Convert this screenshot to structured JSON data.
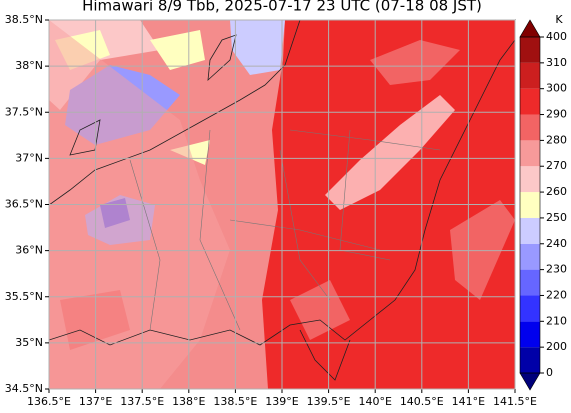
{
  "title": "Himawari 8/9 Tbb, 2025-07-17 23 UTC (07-18 08 JST)",
  "map": {
    "xlim": [
      136.5,
      141.5
    ],
    "ylim": [
      34.5,
      38.5
    ],
    "xticks": [
      {
        "value": 136.5,
        "label": "136.5°E"
      },
      {
        "value": 137,
        "label": "137°E"
      },
      {
        "value": 137.5,
        "label": "137.5°E"
      },
      {
        "value": 138,
        "label": "138°E"
      },
      {
        "value": 138.5,
        "label": "138.5°E"
      },
      {
        "value": 139,
        "label": "139°E"
      },
      {
        "value": 139.5,
        "label": "139.5°E"
      },
      {
        "value": 140,
        "label": "140°E"
      },
      {
        "value": 140.5,
        "label": "140.5°E"
      },
      {
        "value": 141,
        "label": "141°E"
      },
      {
        "value": 141.5,
        "label": "141.5°E"
      }
    ],
    "yticks": [
      {
        "value": 34.5,
        "label": "34.5°N"
      },
      {
        "value": 35,
        "label": "35°N"
      },
      {
        "value": 35.5,
        "label": "35.5°N"
      },
      {
        "value": 36,
        "label": "36°N"
      },
      {
        "value": 36.5,
        "label": "36.5°N"
      },
      {
        "value": 37,
        "label": "37°N"
      },
      {
        "value": 37.5,
        "label": "37.5°N"
      },
      {
        "value": 38,
        "label": "38°N"
      },
      {
        "value": 38.5,
        "label": "38.5°N"
      }
    ],
    "grid": true
  },
  "colorbar": {
    "unit": "K",
    "levels": [
      0,
      200,
      210,
      220,
      230,
      240,
      250,
      260,
      270,
      280,
      290,
      300,
      310,
      400
    ],
    "colors": [
      "#0000a8",
      "#0000ee",
      "#3333ff",
      "#6666ff",
      "#9999ff",
      "#ccccff",
      "#ffffc0",
      "#fcc8c8",
      "#f79a9a",
      "#f26464",
      "#ee2a2a",
      "#cc1f1f",
      "#a01010"
    ],
    "under_color": "#00007a",
    "over_color": "#800000"
  }
}
